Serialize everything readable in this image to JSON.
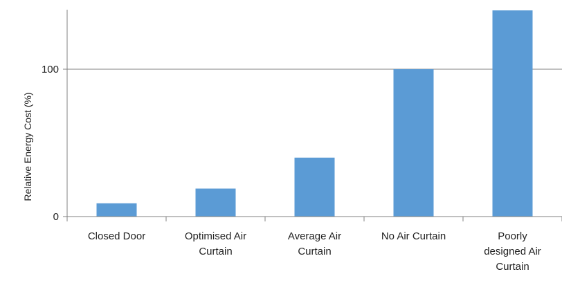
{
  "chart_data": {
    "type": "bar",
    "categories": [
      [
        "Closed Door"
      ],
      [
        "Optimised Air",
        "Curtain"
      ],
      [
        "Average Air",
        "Curtain"
      ],
      [
        "No Air Curtain"
      ],
      [
        "Poorly",
        "designed Air",
        "Curtain"
      ]
    ],
    "values": [
      9,
      19,
      40,
      100,
      140
    ],
    "ylabel": "Relative Energy Cost  (%)",
    "xlabel": "",
    "title": "",
    "yticks": [
      0,
      100
    ],
    "ylim": [
      0,
      140
    ],
    "grid": true,
    "bar_color": "#5b9bd5",
    "axis_color": "#808080"
  }
}
